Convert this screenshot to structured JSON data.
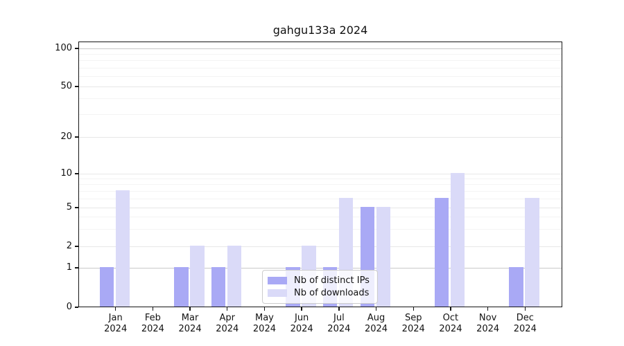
{
  "chart_data": {
    "type": "bar",
    "title": "gahgu133a 2024",
    "categories": [
      "Jan",
      "Feb",
      "Mar",
      "Apr",
      "May",
      "Jun",
      "Jul",
      "Aug",
      "Sep",
      "Oct",
      "Nov",
      "Dec"
    ],
    "year_label": "2024",
    "series": [
      {
        "name": "Nb of distinct IPs",
        "color": "#a9a9f5",
        "values": [
          1,
          0,
          1,
          1,
          0,
          1,
          1,
          5,
          0,
          6,
          0,
          1
        ]
      },
      {
        "name": "Nb of downloads",
        "color": "#dadaf8",
        "values": [
          7,
          0,
          2,
          2,
          0,
          2,
          6,
          5,
          0,
          10,
          0,
          6
        ]
      }
    ],
    "xlabel": "",
    "ylabel": "",
    "yticks": [
      0,
      1,
      2,
      5,
      10,
      20,
      50,
      100
    ],
    "yticks_minor": [
      3,
      4,
      6,
      7,
      8,
      9,
      30,
      40,
      60,
      70,
      80,
      90
    ],
    "ylim": [
      0,
      113
    ],
    "yscale": "log above 1, linear 0-1",
    "grid": "horizontal",
    "legend_position": "lower center"
  }
}
